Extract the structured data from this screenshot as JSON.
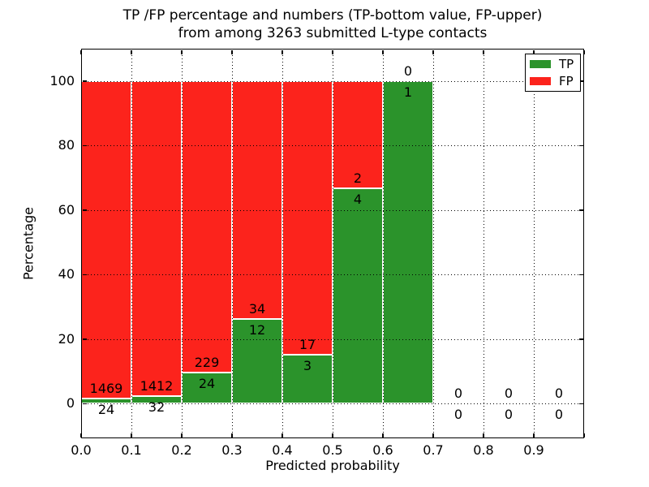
{
  "figure": {
    "title_line1": "TP /FP percentage and numbers (TP-bottom value, FP-upper)",
    "title_line2": "from among 3263 submitted L-type contacts",
    "xlabel": "Predicted probability",
    "ylabel": "Percentage"
  },
  "legend": {
    "entries": [
      {
        "id": "tp",
        "label": "TP",
        "color": "#2b932b"
      },
      {
        "id": "fp",
        "label": "FP",
        "color": "#fc231c"
      }
    ]
  },
  "chart_data": {
    "type": "bar",
    "stacked": true,
    "normalized_to_percent": true,
    "title": "TP /FP percentage and numbers (TP-bottom value, FP-upper) from among 3263 submitted L-type contacts",
    "xlabel": "Predicted probability",
    "ylabel": "Percentage",
    "total_contacts": 3263,
    "bin_width": 0.1,
    "x_tick_labels": [
      "0.0",
      "0.1",
      "0.2",
      "0.3",
      "0.4",
      "0.5",
      "0.6",
      "0.7",
      "0.8",
      "0.9"
    ],
    "y_ticks": [
      0,
      20,
      40,
      60,
      80,
      100
    ],
    "y_tick_labels": [
      "0",
      "20",
      "40",
      "60",
      "80",
      "100"
    ],
    "xlim": [
      0.0,
      1.0
    ],
    "ylim": [
      -11,
      110
    ],
    "grid": "dotted, drawn above bars",
    "legend_position": "upper right",
    "series": [
      {
        "name": "TP",
        "color": "#2b932b",
        "values": [
          24,
          32,
          24,
          12,
          3,
          4,
          1,
          0,
          0,
          0
        ]
      },
      {
        "name": "FP",
        "color": "#fc231c",
        "values": [
          1469,
          1412,
          229,
          34,
          17,
          2,
          0,
          0,
          0,
          0
        ]
      }
    ],
    "bins": [
      {
        "x_start": 0.0,
        "x_end": 0.1,
        "tp": 24,
        "fp": 1469,
        "tp_pct": 1.6
      },
      {
        "x_start": 0.1,
        "x_end": 0.2,
        "tp": 32,
        "fp": 1412,
        "tp_pct": 2.2
      },
      {
        "x_start": 0.2,
        "x_end": 0.3,
        "tp": 24,
        "fp": 229,
        "tp_pct": 9.5
      },
      {
        "x_start": 0.3,
        "x_end": 0.4,
        "tp": 12,
        "fp": 34,
        "tp_pct": 26.1
      },
      {
        "x_start": 0.4,
        "x_end": 0.5,
        "tp": 3,
        "fp": 17,
        "tp_pct": 15.0
      },
      {
        "x_start": 0.5,
        "x_end": 0.6,
        "tp": 4,
        "fp": 2,
        "tp_pct": 66.7
      },
      {
        "x_start": 0.6,
        "x_end": 0.7,
        "tp": 1,
        "fp": 0,
        "tp_pct": 100.0
      },
      {
        "x_start": 0.7,
        "x_end": 0.8,
        "tp": 0,
        "fp": 0,
        "tp_pct": 0.0
      },
      {
        "x_start": 0.8,
        "x_end": 0.9,
        "tp": 0,
        "fp": 0,
        "tp_pct": 0.0
      },
      {
        "x_start": 0.9,
        "x_end": 1.0,
        "tp": 0,
        "fp": 0,
        "tp_pct": 0.0
      }
    ],
    "colors": {
      "tp": "#2b932b",
      "fp": "#fc231c",
      "bar_edge": "#ffffff",
      "grid": "#000000",
      "spine": "#000000"
    }
  }
}
